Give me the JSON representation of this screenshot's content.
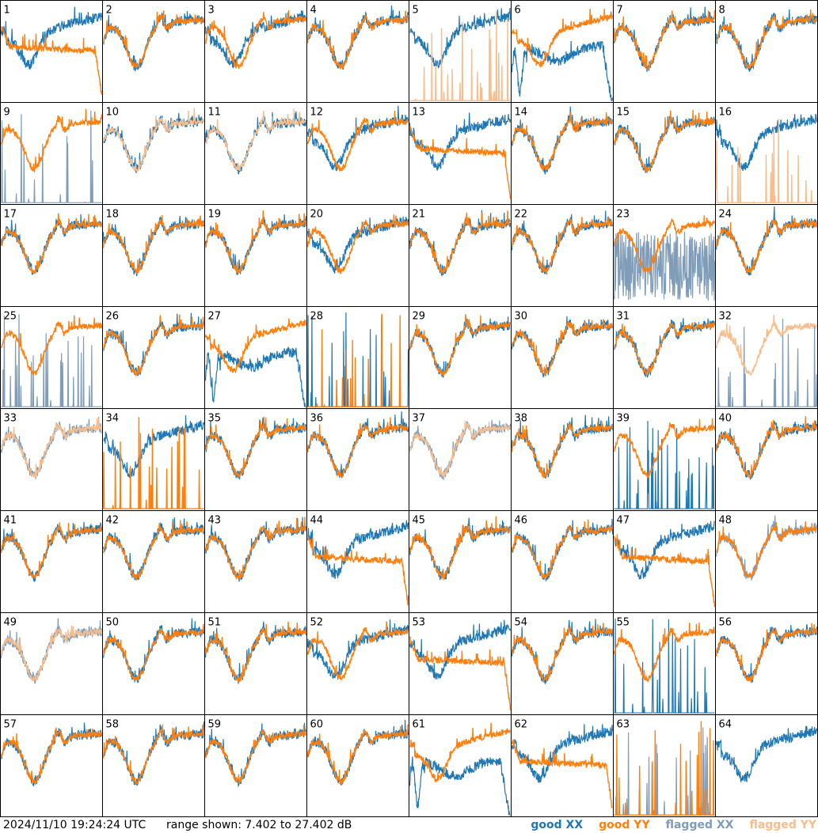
{
  "chart_data": {
    "type": "line",
    "grid": {
      "rows": 8,
      "cols": 8
    },
    "timestamp": "2024/11/10 19:24:24 UTC",
    "range_text": "range shown: 7.402 to 27.402 dB",
    "ylim_db": [
      7.402,
      27.402
    ],
    "legend": [
      {
        "label": "good XX",
        "color": "#1f77b4"
      },
      {
        "label": "good YY",
        "color": "#ff7f0e"
      },
      {
        "label": "flagged XX",
        "color": "#7f9cb8"
      },
      {
        "label": "flagged YY",
        "color": "#f7bd8d"
      }
    ],
    "panels": [
      {
        "label": "1",
        "xx": "good",
        "yy": "good",
        "xxShape": "high",
        "yyShape": "plateau"
      },
      {
        "label": "2",
        "xx": "good",
        "yy": "good",
        "xxShape": "bowl",
        "yyShape": "bowl"
      },
      {
        "label": "3",
        "xx": "good",
        "yy": "good",
        "xxShape": "high",
        "yyShape": "bowl"
      },
      {
        "label": "4",
        "xx": "good",
        "yy": "good",
        "xxShape": "bowl",
        "yyShape": "bowl"
      },
      {
        "label": "5",
        "xx": "good",
        "yy": "flagged",
        "xxShape": "high",
        "yyShape": "spikes"
      },
      {
        "label": "6",
        "xx": "good",
        "yy": "good",
        "xxShape": "drop",
        "yyShape": "high"
      },
      {
        "label": "7",
        "xx": "good",
        "yy": "good",
        "xxShape": "bowl",
        "yyShape": "bowl"
      },
      {
        "label": "8",
        "xx": "good",
        "yy": "good",
        "xxShape": "bowl",
        "yyShape": "bowl"
      },
      {
        "label": "9",
        "xx": "flagged",
        "yy": "good",
        "xxShape": "spikes",
        "yyShape": "bowl"
      },
      {
        "label": "10",
        "xx": "good",
        "yy": "flagged",
        "xxShape": "bowl",
        "yyShape": "bowl"
      },
      {
        "label": "11",
        "xx": "good",
        "yy": "flagged",
        "xxShape": "bowl",
        "yyShape": "bowl"
      },
      {
        "label": "12",
        "xx": "good",
        "yy": "good",
        "xxShape": "high",
        "yyShape": "bowl"
      },
      {
        "label": "13",
        "xx": "good",
        "yy": "good",
        "xxShape": "high",
        "yyShape": "plateau"
      },
      {
        "label": "14",
        "xx": "good",
        "yy": "good",
        "xxShape": "bowl",
        "yyShape": "bowl"
      },
      {
        "label": "15",
        "xx": "good",
        "yy": "good",
        "xxShape": "bowl",
        "yyShape": "bowl"
      },
      {
        "label": "16",
        "xx": "good",
        "yy": "flagged",
        "xxShape": "high",
        "yyShape": "spikes"
      },
      {
        "label": "17",
        "xx": "good",
        "yy": "good",
        "xxShape": "bowl",
        "yyShape": "bowl"
      },
      {
        "label": "18",
        "xx": "good",
        "yy": "good",
        "xxShape": "bowl",
        "yyShape": "bowl"
      },
      {
        "label": "19",
        "xx": "good",
        "yy": "good",
        "xxShape": "bowl",
        "yyShape": "bowl"
      },
      {
        "label": "20",
        "xx": "good",
        "yy": "good",
        "xxShape": "high",
        "yyShape": "bowl"
      },
      {
        "label": "21",
        "xx": "good",
        "yy": "good",
        "xxShape": "bowl",
        "yyShape": "bowl"
      },
      {
        "label": "22",
        "xx": "good",
        "yy": "good",
        "xxShape": "bowl",
        "yyShape": "bowl"
      },
      {
        "label": "23",
        "xx": "flagged",
        "yy": "good",
        "xxShape": "noise",
        "yyShape": "bowl"
      },
      {
        "label": "24",
        "xx": "good",
        "yy": "good",
        "xxShape": "bowl",
        "yyShape": "bowl"
      },
      {
        "label": "25",
        "xx": "flagged",
        "yy": "good",
        "xxShape": "spikes",
        "yyShape": "bowl"
      },
      {
        "label": "26",
        "xx": "good",
        "yy": "good",
        "xxShape": "bowl",
        "yyShape": "bowl"
      },
      {
        "label": "27",
        "xx": "good",
        "yy": "good",
        "xxShape": "drop",
        "yyShape": "high"
      },
      {
        "label": "28",
        "xx": "good",
        "yy": "good",
        "xxShape": "spikes",
        "yyShape": "spikes"
      },
      {
        "label": "29",
        "xx": "good",
        "yy": "good",
        "xxShape": "bowl",
        "yyShape": "bowl"
      },
      {
        "label": "30",
        "xx": "good",
        "yy": "good",
        "xxShape": "bowl",
        "yyShape": "bowl"
      },
      {
        "label": "31",
        "xx": "good",
        "yy": "good",
        "xxShape": "bowl",
        "yyShape": "bowl"
      },
      {
        "label": "32",
        "xx": "flagged",
        "yy": "flagged",
        "xxShape": "spikes",
        "yyShape": "bowl"
      },
      {
        "label": "33",
        "xx": "flagged",
        "yy": "flagged",
        "xxShape": "bowl",
        "yyShape": "bowl"
      },
      {
        "label": "34",
        "xx": "good",
        "yy": "good",
        "xxShape": "high",
        "yyShape": "spikes"
      },
      {
        "label": "35",
        "xx": "good",
        "yy": "good",
        "xxShape": "bowl",
        "yyShape": "bowl"
      },
      {
        "label": "36",
        "xx": "good",
        "yy": "good",
        "xxShape": "bowl",
        "yyShape": "bowl"
      },
      {
        "label": "37",
        "xx": "flagged",
        "yy": "flagged",
        "xxShape": "bowl",
        "yyShape": "bowl"
      },
      {
        "label": "38",
        "xx": "good",
        "yy": "good",
        "xxShape": "bowl",
        "yyShape": "bowl"
      },
      {
        "label": "39",
        "xx": "good",
        "yy": "good",
        "xxShape": "spikes",
        "yyShape": "bowl"
      },
      {
        "label": "40",
        "xx": "good",
        "yy": "good",
        "xxShape": "bowl",
        "yyShape": "bowl"
      },
      {
        "label": "41",
        "xx": "good",
        "yy": "good",
        "xxShape": "bowl",
        "yyShape": "bowl"
      },
      {
        "label": "42",
        "xx": "good",
        "yy": "good",
        "xxShape": "bowl",
        "yyShape": "bowl"
      },
      {
        "label": "43",
        "xx": "good",
        "yy": "good",
        "xxShape": "bowl",
        "yyShape": "bowl"
      },
      {
        "label": "44",
        "xx": "good",
        "yy": "good",
        "xxShape": "high",
        "yyShape": "plateau"
      },
      {
        "label": "45",
        "xx": "good",
        "yy": "good",
        "xxShape": "bowl",
        "yyShape": "bowl"
      },
      {
        "label": "46",
        "xx": "good",
        "yy": "good",
        "xxShape": "bowl",
        "yyShape": "bowl"
      },
      {
        "label": "47",
        "xx": "good",
        "yy": "good",
        "xxShape": "high",
        "yyShape": "plateau"
      },
      {
        "label": "48",
        "xx": "flagged",
        "yy": "good",
        "xxShape": "bowl",
        "yyShape": "bowl"
      },
      {
        "label": "49",
        "xx": "flagged",
        "yy": "flagged",
        "xxShape": "bowl",
        "yyShape": "bowl"
      },
      {
        "label": "50",
        "xx": "good",
        "yy": "good",
        "xxShape": "bowl",
        "yyShape": "bowl"
      },
      {
        "label": "51",
        "xx": "good",
        "yy": "good",
        "xxShape": "bowl",
        "yyShape": "bowl"
      },
      {
        "label": "52",
        "xx": "good",
        "yy": "good",
        "xxShape": "high",
        "yyShape": "bowl"
      },
      {
        "label": "53",
        "xx": "good",
        "yy": "good",
        "xxShape": "high",
        "yyShape": "plateau"
      },
      {
        "label": "54",
        "xx": "good",
        "yy": "good",
        "xxShape": "bowl",
        "yyShape": "bowl"
      },
      {
        "label": "55",
        "xx": "good",
        "yy": "good",
        "xxShape": "spikes",
        "yyShape": "bowl"
      },
      {
        "label": "56",
        "xx": "good",
        "yy": "good",
        "xxShape": "bowl",
        "yyShape": "bowl"
      },
      {
        "label": "57",
        "xx": "good",
        "yy": "good",
        "xxShape": "bowl",
        "yyShape": "bowl"
      },
      {
        "label": "58",
        "xx": "good",
        "yy": "good",
        "xxShape": "bowl",
        "yyShape": "bowl"
      },
      {
        "label": "59",
        "xx": "good",
        "yy": "good",
        "xxShape": "bowl",
        "yyShape": "bowl"
      },
      {
        "label": "60",
        "xx": "good",
        "yy": "good",
        "xxShape": "bowl",
        "yyShape": "bowl"
      },
      {
        "label": "61",
        "xx": "good",
        "yy": "good",
        "xxShape": "drop",
        "yyShape": "high"
      },
      {
        "label": "62",
        "xx": "good",
        "yy": "good",
        "xxShape": "high",
        "yyShape": "plateau"
      },
      {
        "label": "63",
        "xx": "flagged",
        "yy": "good",
        "xxShape": "spikes",
        "yyShape": "spikes"
      },
      {
        "label": "64",
        "xx": "good",
        "yy": "none",
        "xxShape": "high",
        "yyShape": "none"
      }
    ]
  }
}
